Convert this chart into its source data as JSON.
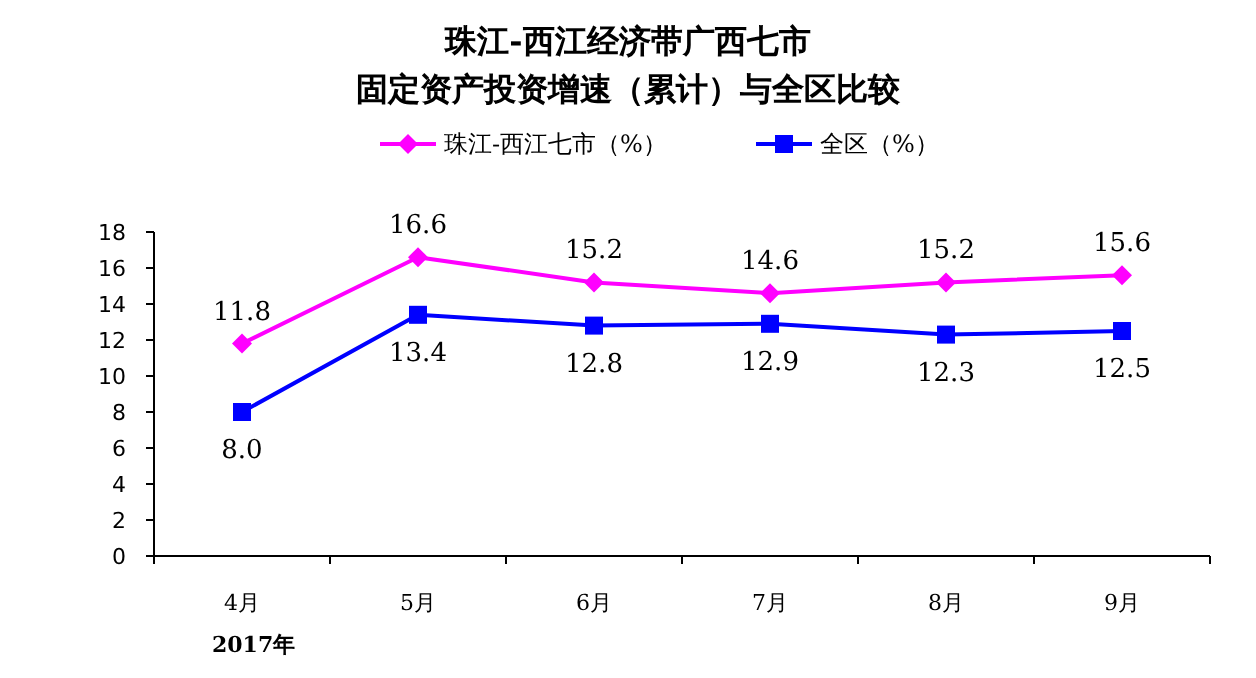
{
  "chart_data": {
    "type": "line",
    "title": "珠江-西江经济带广西七市",
    "subtitle": "固定资产投资增速（累计）与全区比较",
    "categories": [
      "4月",
      "5月",
      "6月",
      "7月",
      "8月",
      "9月"
    ],
    "series": [
      {
        "name": "珠江-西江七市（%）",
        "color": "#ff00ff",
        "marker": "diamond",
        "values": [
          11.8,
          16.6,
          15.2,
          14.6,
          15.2,
          15.6
        ],
        "value_labels": [
          "11.8",
          "16.6",
          "15.2",
          "14.6",
          "15.2",
          "15.6"
        ]
      },
      {
        "name": "全区（%）",
        "color": "#0000ff",
        "marker": "square",
        "values": [
          8.0,
          13.4,
          12.8,
          12.9,
          12.3,
          12.5
        ],
        "value_labels": [
          "8.0",
          "13.4",
          "12.8",
          "12.9",
          "12.3",
          "12.5"
        ]
      }
    ],
    "ylim": [
      0,
      18
    ],
    "yticks": [
      0,
      2,
      4,
      6,
      8,
      10,
      12,
      14,
      16,
      18
    ],
    "grid": false,
    "legend": "top",
    "line_style": "solid",
    "annotations": [
      "2017年"
    ]
  }
}
